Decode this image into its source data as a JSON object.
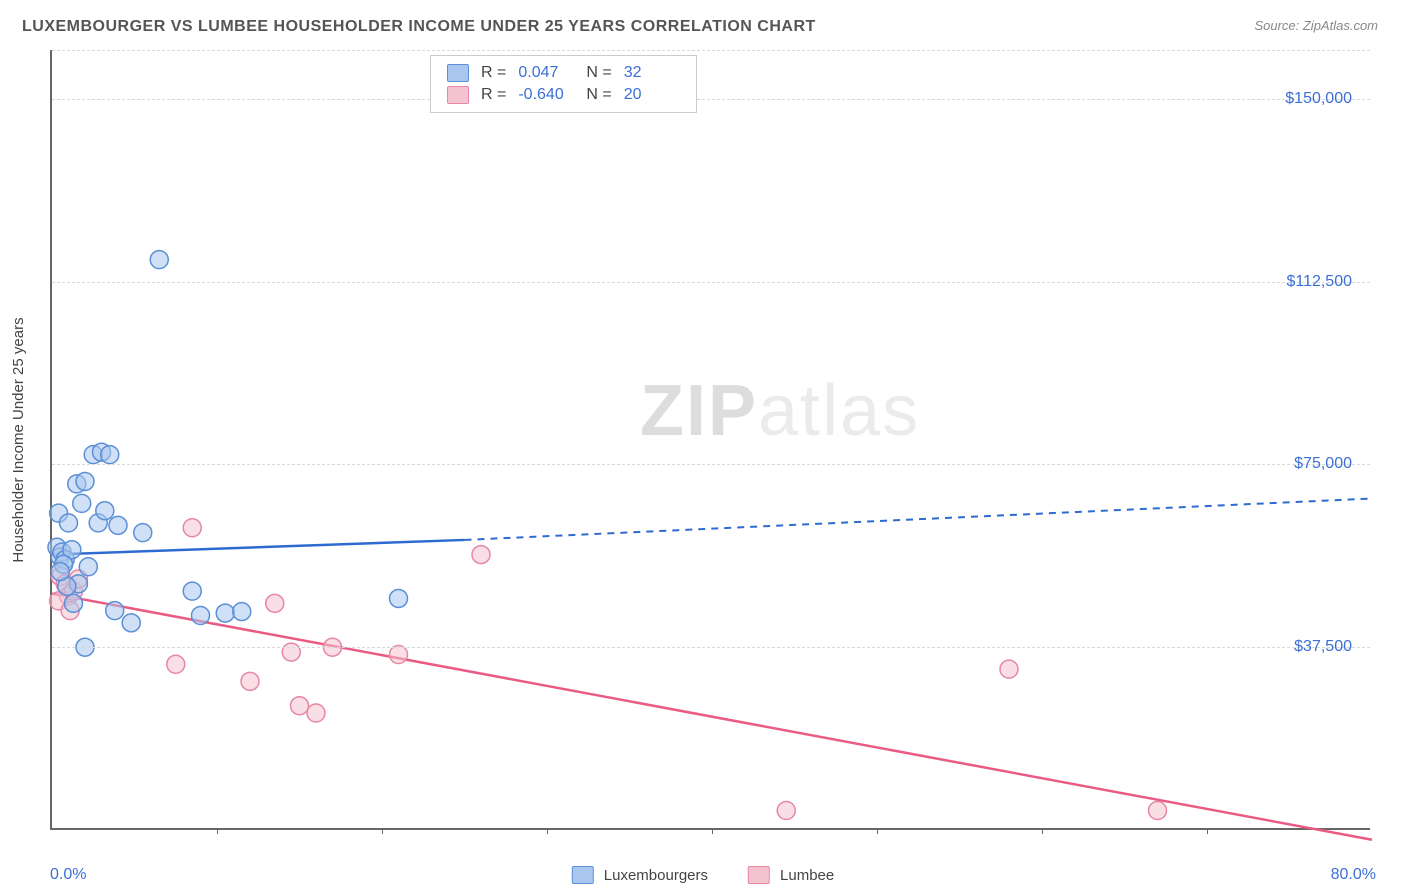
{
  "title": "LUXEMBOURGER VS LUMBEE HOUSEHOLDER INCOME UNDER 25 YEARS CORRELATION CHART",
  "source": "Source: ZipAtlas.com",
  "watermark_a": "ZIP",
  "watermark_b": "atlas",
  "chart": {
    "type": "scatter",
    "background_color": "#ffffff",
    "grid_color": "#d8d8d8",
    "axis_color": "#666666",
    "label_color": "#3b6fd6",
    "text_color": "#444444",
    "title_fontsize": 16,
    "label_fontsize": 15,
    "tick_fontsize": 16,
    "xlim": [
      0,
      80
    ],
    "ylim": [
      0,
      160000
    ],
    "x_unit": "%",
    "y_unit": "$",
    "y_ticks": [
      37500,
      75000,
      112500,
      150000
    ],
    "y_tick_labels": [
      "$37,500",
      "$75,000",
      "$112,500",
      "$150,000"
    ],
    "x_tick_positions": [
      10,
      20,
      30,
      40,
      50,
      60,
      70
    ],
    "x_min_label": "0.0%",
    "x_max_label": "80.0%",
    "y_axis_label": "Householder Income Under 25 years",
    "marker_radius": 9,
    "marker_opacity": 0.55,
    "line_width": 2.5,
    "series": [
      {
        "name": "Luxembourgers",
        "color_fill": "#a9c6ee",
        "color_stroke": "#5b8fd6",
        "line_color": "#2e6bd0",
        "r_value": "0.047",
        "n_value": "32",
        "regression": {
          "x1": 0,
          "y1": 56500,
          "x2": 25,
          "y2": 59500,
          "x2_dash": 80,
          "y2_dash": 68000
        },
        "points": [
          {
            "x": 0.3,
            "y": 58000
          },
          {
            "x": 0.5,
            "y": 56000
          },
          {
            "x": 0.6,
            "y": 57000
          },
          {
            "x": 0.8,
            "y": 55500
          },
          {
            "x": 0.4,
            "y": 65000
          },
          {
            "x": 1.0,
            "y": 63000
          },
          {
            "x": 1.2,
            "y": 57500
          },
          {
            "x": 0.7,
            "y": 54500
          },
          {
            "x": 1.5,
            "y": 71000
          },
          {
            "x": 2.0,
            "y": 71500
          },
          {
            "x": 2.5,
            "y": 77000
          },
          {
            "x": 3.0,
            "y": 77500
          },
          {
            "x": 3.5,
            "y": 77000
          },
          {
            "x": 1.8,
            "y": 67000
          },
          {
            "x": 2.8,
            "y": 63000
          },
          {
            "x": 3.2,
            "y": 65500
          },
          {
            "x": 4.0,
            "y": 62500
          },
          {
            "x": 5.5,
            "y": 61000
          },
          {
            "x": 2.2,
            "y": 54000
          },
          {
            "x": 1.6,
            "y": 50500
          },
          {
            "x": 1.3,
            "y": 46500
          },
          {
            "x": 0.9,
            "y": 50000
          },
          {
            "x": 3.8,
            "y": 45000
          },
          {
            "x": 4.8,
            "y": 42500
          },
          {
            "x": 2.0,
            "y": 37500
          },
          {
            "x": 8.5,
            "y": 49000
          },
          {
            "x": 10.5,
            "y": 44500
          },
          {
            "x": 11.5,
            "y": 44800
          },
          {
            "x": 9.0,
            "y": 44000
          },
          {
            "x": 21.0,
            "y": 47500
          },
          {
            "x": 6.5,
            "y": 117000
          },
          {
            "x": 0.5,
            "y": 53000
          }
        ]
      },
      {
        "name": "Lumbee",
        "color_fill": "#f4c3d0",
        "color_stroke": "#e787a5",
        "line_color": "#ea5b84",
        "r_value": "-0.640",
        "n_value": "20",
        "regression": {
          "x1": 0,
          "y1": 48500,
          "x2": 80,
          "y2": -2000,
          "x2_dash": 80,
          "y2_dash": -2000
        },
        "points": [
          {
            "x": 0.5,
            "y": 52000
          },
          {
            "x": 0.8,
            "y": 50500
          },
          {
            "x": 1.0,
            "y": 48000
          },
          {
            "x": 1.3,
            "y": 49000
          },
          {
            "x": 1.6,
            "y": 51500
          },
          {
            "x": 0.4,
            "y": 47000
          },
          {
            "x": 1.1,
            "y": 45000
          },
          {
            "x": 8.5,
            "y": 62000
          },
          {
            "x": 13.5,
            "y": 46500
          },
          {
            "x": 7.5,
            "y": 34000
          },
          {
            "x": 12.0,
            "y": 30500
          },
          {
            "x": 14.5,
            "y": 36500
          },
          {
            "x": 15.0,
            "y": 25500
          },
          {
            "x": 16.0,
            "y": 24000
          },
          {
            "x": 17.0,
            "y": 37500
          },
          {
            "x": 26.0,
            "y": 56500
          },
          {
            "x": 44.5,
            "y": 4000
          },
          {
            "x": 58.0,
            "y": 33000
          },
          {
            "x": 67.0,
            "y": 4000
          },
          {
            "x": 21.0,
            "y": 36000
          }
        ]
      }
    ]
  },
  "bottom_legend": {
    "series1_label": "Luxembourgers",
    "series2_label": "Lumbee"
  }
}
